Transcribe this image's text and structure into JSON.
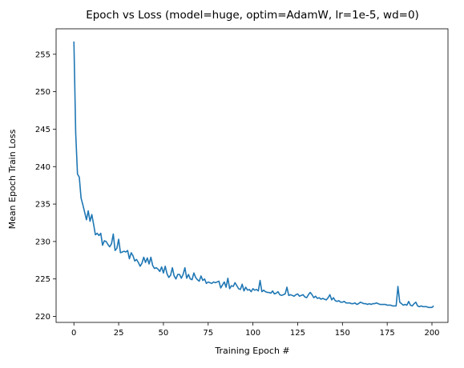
{
  "chart_data": {
    "type": "line",
    "title": "Epoch vs Loss (model=huge, optim=AdamW, lr=1e-5, wd=0)",
    "xlabel": "Training Epoch #",
    "ylabel": "Mean Epoch Train Loss",
    "xlim": [
      -9.95,
      208.95
    ],
    "ylim": [
      219.2,
      258.4
    ],
    "xticks": [
      0,
      25,
      50,
      75,
      100,
      125,
      150,
      175,
      200
    ],
    "yticks": [
      220,
      225,
      230,
      235,
      240,
      245,
      250,
      255
    ],
    "grid": false,
    "legend": "none",
    "series_color": "#1f77b4",
    "series": [
      {
        "values": [
          256.7,
          244.5,
          239.0,
          238.6,
          235.8,
          234.9,
          233.9,
          232.9,
          234.1,
          232.7,
          233.6,
          232.3,
          230.9,
          231.1,
          230.8,
          231.1,
          229.5,
          230.1,
          230.0,
          229.6,
          229.3,
          229.7,
          231.0,
          228.8,
          229.1,
          230.3,
          228.5,
          228.6,
          228.7,
          228.6,
          228.8,
          227.7,
          228.5,
          228.1,
          227.4,
          227.6,
          227.2,
          226.7,
          227.1,
          227.9,
          227.2,
          227.8,
          227.0,
          227.9,
          226.8,
          226.4,
          226.5,
          226.3,
          226.0,
          226.6,
          225.8,
          226.7,
          225.7,
          225.2,
          225.5,
          226.5,
          225.4,
          225.0,
          225.6,
          225.6,
          225.1,
          225.6,
          226.5,
          225.1,
          225.6,
          225.0,
          224.9,
          225.8,
          225.2,
          224.9,
          224.7,
          225.4,
          224.8,
          225.0,
          224.4,
          224.6,
          224.5,
          224.4,
          224.6,
          224.5,
          224.6,
          224.7,
          223.8,
          224.2,
          224.6,
          223.9,
          225.1,
          223.7,
          224.1,
          224.0,
          224.5,
          224.1,
          223.7,
          223.6,
          224.3,
          223.4,
          223.9,
          223.5,
          223.6,
          223.3,
          223.7,
          223.5,
          223.6,
          223.4,
          224.8,
          223.3,
          223.5,
          223.3,
          223.2,
          223.2,
          223.1,
          223.4,
          223.0,
          223.1,
          223.3,
          222.9,
          222.8,
          222.9,
          223.0,
          223.9,
          222.8,
          222.9,
          222.8,
          222.7,
          222.9,
          223.0,
          222.7,
          222.8,
          222.9,
          222.6,
          222.5,
          222.9,
          223.2,
          222.9,
          222.5,
          222.7,
          222.4,
          222.5,
          222.3,
          222.4,
          222.3,
          222.2,
          222.5,
          222.9,
          222.2,
          222.5,
          222.1,
          222.0,
          222.1,
          221.9,
          221.9,
          222.0,
          221.8,
          221.8,
          221.8,
          221.7,
          221.7,
          221.8,
          221.6,
          221.7,
          221.9,
          221.8,
          221.7,
          221.7,
          221.6,
          221.7,
          221.6,
          221.7,
          221.7,
          221.8,
          221.7,
          221.6,
          221.6,
          221.6,
          221.6,
          221.5,
          221.5,
          221.5,
          221.4,
          221.4,
          221.4,
          224.0,
          221.9,
          221.7,
          221.5,
          221.6,
          221.5,
          222.0,
          221.5,
          221.4,
          221.7,
          221.9,
          221.4,
          221.3,
          221.4,
          221.3,
          221.3,
          221.3,
          221.2,
          221.2,
          221.2,
          221.4
        ]
      }
    ]
  }
}
